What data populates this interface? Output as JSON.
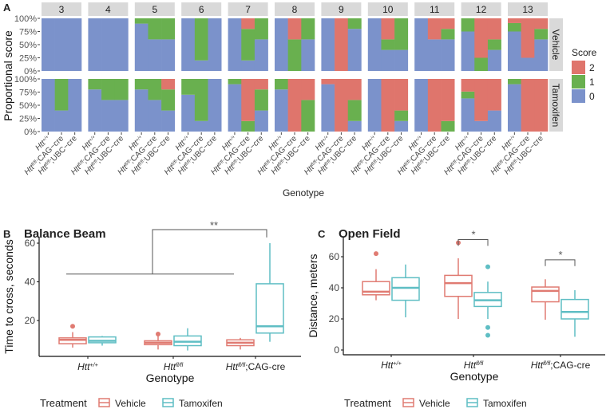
{
  "chart_data": [
    {
      "type": "bar",
      "subtype": "stacked-proportion-facets",
      "panel_label": "A",
      "ylabel": "Proportional score",
      "xlabel": "Genotype",
      "yticks": [
        "0%",
        "25%",
        "50%",
        "75%",
        "100%"
      ],
      "legend_title": "Score",
      "legend": [
        {
          "label": "2",
          "color": "#df756c"
        },
        {
          "label": "1",
          "color": "#69b04f"
        },
        {
          "label": "0",
          "color": "#7b92cb"
        }
      ],
      "score_colors": [
        "#7b92cb",
        "#69b04f",
        "#df756c"
      ],
      "rows": [
        "Vehicle",
        "Tamoxifen"
      ],
      "genotypes": [
        {
          "base": "Htt",
          "sup": "+/+",
          "suffix": ""
        },
        {
          "base": "Htt",
          "sup": "fl/fl",
          "suffix": ";CAG−cre"
        },
        {
          "base": "Htt",
          "sup": "fl/fl",
          "suffix": ";UBC−cre"
        }
      ],
      "value_format": "proportions of score [0,1,2] per genotype",
      "facets": [
        {
          "label": "3",
          "vehicle": [
            [
              1,
              0,
              0
            ],
            [
              1,
              0,
              0
            ],
            [
              1,
              0,
              0
            ]
          ],
          "tamoxifen": [
            [
              1,
              0,
              0
            ],
            [
              0.4,
              0.6,
              0
            ],
            [
              1,
              0,
              0
            ]
          ]
        },
        {
          "label": "4",
          "vehicle": [
            [
              1,
              0,
              0
            ],
            [
              1,
              0,
              0
            ],
            [
              1,
              0,
              0
            ]
          ],
          "tamoxifen": [
            [
              0.8,
              0.2,
              0
            ],
            [
              0.6,
              0.4,
              0
            ],
            [
              0.6,
              0.4,
              0
            ]
          ]
        },
        {
          "label": "5",
          "vehicle": [
            [
              0.9,
              0.1,
              0
            ],
            [
              0.6,
              0.4,
              0
            ],
            [
              0.6,
              0.4,
              0
            ]
          ],
          "tamoxifen": [
            [
              0.8,
              0.2,
              0
            ],
            [
              0.6,
              0.4,
              0
            ],
            [
              0.4,
              0.4,
              0.2
            ]
          ]
        },
        {
          "label": "6",
          "vehicle": [
            [
              1,
              0,
              0
            ],
            [
              0.2,
              0.8,
              0
            ],
            [
              1,
              0,
              0
            ]
          ],
          "tamoxifen": [
            [
              0.7,
              0.3,
              0
            ],
            [
              0.2,
              0.8,
              0
            ],
            [
              1,
              0,
              0
            ]
          ]
        },
        {
          "label": "7",
          "vehicle": [
            [
              1,
              0,
              0
            ],
            [
              0.2,
              0.6,
              0.2
            ],
            [
              0.6,
              0.4,
              0
            ]
          ],
          "tamoxifen": [
            [
              0.9,
              0.1,
              0
            ],
            [
              0,
              0.2,
              0.8
            ],
            [
              0.4,
              0.4,
              0.2
            ]
          ]
        },
        {
          "label": "8",
          "vehicle": [
            [
              1,
              0,
              0
            ],
            [
              0,
              0.6,
              0.4
            ],
            [
              0.6,
              0.4,
              0
            ]
          ],
          "tamoxifen": [
            [
              0.8,
              0.2,
              0
            ],
            [
              0,
              0,
              1
            ],
            [
              0,
              0.6,
              0.4
            ]
          ]
        },
        {
          "label": "9",
          "vehicle": [
            [
              1,
              0,
              0
            ],
            [
              0,
              0,
              1
            ],
            [
              0.8,
              0.2,
              0
            ]
          ],
          "tamoxifen": [
            [
              0.9,
              0,
              0.1
            ],
            [
              0,
              0,
              1
            ],
            [
              0.2,
              0.4,
              0.4
            ]
          ]
        },
        {
          "label": "10",
          "vehicle": [
            [
              1,
              0,
              0
            ],
            [
              0.4,
              0.2,
              0.4
            ],
            [
              0.4,
              0.6,
              0
            ]
          ],
          "tamoxifen": [
            [
              1,
              0,
              0
            ],
            [
              0,
              0,
              1
            ],
            [
              0.2,
              0.2,
              0.6
            ]
          ]
        },
        {
          "label": "11",
          "vehicle": [
            [
              1,
              0,
              0
            ],
            [
              0.6,
              0,
              0.4
            ],
            [
              0.6,
              0.2,
              0.2
            ]
          ],
          "tamoxifen": [
            [
              1,
              0,
              0
            ],
            [
              0,
              0,
              1
            ],
            [
              0,
              0.2,
              0.8
            ]
          ]
        },
        {
          "label": "12",
          "vehicle": [
            [
              0.75,
              0.25,
              0
            ],
            [
              0,
              0.25,
              0.75
            ],
            [
              0.4,
              0.2,
              0.4
            ]
          ],
          "tamoxifen": [
            [
              0.63,
              0.13,
              0.24
            ],
            [
              0.2,
              0,
              0.8
            ],
            [
              0.4,
              0,
              0.6
            ]
          ]
        },
        {
          "label": "13",
          "vehicle": [
            [
              0.75,
              0.16,
              0.09
            ],
            [
              0.25,
              0,
              0.75
            ],
            [
              0.6,
              0.2,
              0.2
            ]
          ],
          "tamoxifen": [
            [
              0.9,
              0.1,
              0
            ],
            [
              0,
              0,
              1
            ],
            [
              0,
              0,
              1
            ]
          ]
        }
      ]
    },
    {
      "type": "boxplot",
      "panel_label": "B",
      "title": "Balance Beam",
      "ylabel": "Time to cross, seconds",
      "xlabel": "Genotype",
      "ylim": [
        1.5,
        63.3
      ],
      "yticks": [
        "20",
        "40",
        "60"
      ],
      "ytick_values": [
        20,
        40,
        60
      ],
      "categories": [
        {
          "base": "Htt",
          "sup": "+/+",
          "suffix": ""
        },
        {
          "base": "Htt",
          "sup": "fl/fl",
          "suffix": ""
        },
        {
          "base": "Htt",
          "sup": "fl/fl",
          "suffix": ";CAG-cre"
        }
      ],
      "legend_title": "Treatment",
      "series": [
        {
          "name": "Vehicle",
          "color": "#e07b72",
          "boxes": [
            {
              "lo": 6,
              "q1": 8,
              "median": 10,
              "q3": 11,
              "hi": 14,
              "outliers": [
                17
              ]
            },
            {
              "lo": 5,
              "q1": 7.5,
              "median": 8.5,
              "q3": 9.5,
              "hi": 12,
              "outliers": [
                13
              ]
            },
            {
              "lo": 5,
              "q1": 7,
              "median": 8.5,
              "q3": 10,
              "hi": 11,
              "outliers": []
            }
          ]
        },
        {
          "name": "Tamoxifen",
          "color": "#5fbec4",
          "boxes": [
            {
              "lo": 7,
              "q1": 8.5,
              "median": 9.5,
              "q3": 11.5,
              "hi": 12,
              "outliers": []
            },
            {
              "lo": 4.5,
              "q1": 7,
              "median": 9,
              "q3": 12,
              "hi": 16,
              "outliers": []
            },
            {
              "lo": 9,
              "q1": 13.5,
              "median": 17,
              "q3": 39,
              "hi": 60,
              "outliers": []
            }
          ]
        }
      ],
      "annotations": [
        {
          "text": "**",
          "comparison": "Htt+/+ & Httfl/fl vs Httfl/fl;CAG-cre Tamoxifen",
          "low_bar_y": 44,
          "bracket_y": 67,
          "end_y": 63
        }
      ]
    },
    {
      "type": "boxplot",
      "panel_label": "C",
      "title": "Open Field",
      "ylabel": "Distance, meters",
      "xlabel": "Genotype",
      "ylim": [
        -3,
        72
      ],
      "yticks": [
        "0",
        "20",
        "40",
        "60"
      ],
      "ytick_values": [
        0,
        20,
        40,
        60
      ],
      "categories": [
        {
          "base": "Htt",
          "sup": "+/+",
          "suffix": ""
        },
        {
          "base": "Htt",
          "sup": "fl/fl",
          "suffix": ""
        },
        {
          "base": "Htt",
          "sup": "fl/fl",
          "suffix": ";CAG-cre"
        }
      ],
      "legend_title": "Treatment",
      "series": [
        {
          "name": "Vehicle",
          "color": "#e07b72",
          "boxes": [
            {
              "lo": 32,
              "q1": 35.5,
              "median": 37.5,
              "q3": 44,
              "hi": 52,
              "outliers": [
                62
              ]
            },
            {
              "lo": 20,
              "q1": 34.5,
              "median": 43,
              "q3": 48,
              "hi": 59,
              "outliers": [
                69
              ]
            },
            {
              "lo": 19.5,
              "q1": 31,
              "median": 38,
              "q3": 40.5,
              "hi": 45.5,
              "outliers": []
            }
          ]
        },
        {
          "name": "Tamoxifen",
          "color": "#5fbec4",
          "boxes": [
            {
              "lo": 21,
              "q1": 32,
              "median": 40,
              "q3": 46.5,
              "hi": 55,
              "outliers": []
            },
            {
              "lo": 20,
              "q1": 28,
              "median": 32,
              "q3": 37,
              "hi": 44,
              "outliers": [
                53.5,
                14.5,
                9.5
              ]
            },
            {
              "lo": 8.5,
              "q1": 20,
              "median": 24.5,
              "q3": 32.5,
              "hi": 38.5,
              "outliers": []
            }
          ]
        }
      ],
      "annotations": [
        {
          "text": "*",
          "category": 1,
          "bracket_y": 71,
          "end_y": 67
        },
        {
          "text": "*",
          "category": 2,
          "bracket_y": 58,
          "end_y": 54
        }
      ]
    }
  ]
}
